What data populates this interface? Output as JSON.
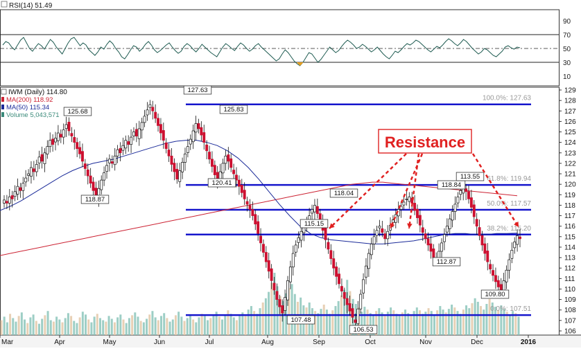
{
  "chart_data": {
    "type": "candlestick",
    "rsi_panel": {
      "label": "RSI(14) 51.49",
      "y_ticks": [
        90,
        70,
        50,
        30,
        10
      ],
      "levels": [
        70,
        50,
        30
      ],
      "values": [
        55,
        60,
        58,
        52,
        48,
        55,
        62,
        66,
        58,
        50,
        46,
        52,
        57,
        54,
        49,
        56,
        63,
        59,
        52,
        47,
        42,
        50,
        58,
        64,
        66,
        60,
        54,
        58,
        55,
        48,
        44,
        40,
        45,
        52,
        49,
        56,
        61,
        57,
        50,
        45,
        38,
        35,
        41,
        48,
        54,
        52,
        46,
        50,
        56,
        60,
        55,
        48,
        44,
        47,
        51,
        55,
        58,
        52,
        47,
        43,
        46,
        53,
        57,
        54,
        49,
        45,
        50,
        56,
        52,
        48,
        44,
        41,
        38,
        45,
        52,
        57,
        54,
        50,
        47,
        53,
        58,
        55,
        50,
        46,
        49,
        54,
        57,
        52,
        48,
        44,
        40,
        36,
        32,
        35,
        42,
        48,
        44,
        38,
        32,
        28,
        25,
        30,
        37,
        44,
        42,
        36,
        30,
        34,
        40,
        46,
        52,
        48,
        44,
        47,
        53,
        58,
        62,
        59,
        55,
        50,
        52,
        56,
        53,
        49,
        45,
        48,
        52,
        47,
        42,
        38,
        35,
        40,
        46,
        44,
        48,
        53,
        57,
        55,
        58,
        62,
        60,
        56,
        52,
        48,
        45,
        49,
        53,
        51,
        55,
        60,
        64,
        61,
        57,
        54,
        58,
        63,
        60,
        55,
        50,
        46,
        42,
        45,
        50,
        48,
        44,
        40,
        38,
        42,
        46,
        52,
        54,
        51,
        49,
        52,
        51
      ]
    },
    "main_panel": {
      "title": "IWM (Daily) 114.80",
      "legend": [
        {
          "label": "MA(200) 118.92",
          "color": "#cc2233"
        },
        {
          "label": "MA(50) 115.34",
          "color": "#1a2a99"
        },
        {
          "label": "Volume 5,043,571",
          "color": "#3a8a7a"
        }
      ],
      "y_min": 106,
      "y_max": 129,
      "y_ticks": [
        106,
        107,
        108,
        109,
        110,
        111,
        112,
        113,
        114,
        115,
        116,
        117,
        118,
        119,
        120,
        121,
        122,
        123,
        124,
        125,
        126,
        127,
        128,
        129
      ],
      "x_labels": [
        "Mar",
        "Apr",
        "May",
        "Jun",
        "Jul",
        "Aug",
        "Sep",
        "Oct",
        "Nov",
        "Dec",
        "2016"
      ],
      "fib_levels": [
        {
          "label": "100.0%: 127.63",
          "value": 127.63
        },
        {
          "label": "61.8%: 119.94",
          "value": 119.94
        },
        {
          "label": "50.0%: 117.57",
          "value": 117.57
        },
        {
          "label": "38.2%: 115.20",
          "value": 115.2
        },
        {
          "label": "0.0%: 107.51",
          "value": 107.51
        }
      ],
      "price_labels": [
        "125.68",
        "118.87",
        "127.63",
        "125.83",
        "120.41",
        "118.04",
        "115.15",
        "107.48",
        "106.53",
        "118.84",
        "113.55",
        "112.87",
        "109.80"
      ],
      "annotation": "Resistance",
      "closes": [
        118.5,
        118.2,
        118.8,
        118.6,
        119.3,
        119.8,
        119.4,
        120.1,
        120.6,
        121.0,
        121.6,
        121.2,
        121.9,
        122.6,
        122.2,
        123.0,
        123.6,
        124.2,
        123.8,
        124.4,
        124.9,
        124.5,
        125.2,
        125.7,
        125.1,
        124.6,
        124.0,
        123.4,
        122.9,
        122.2,
        121.5,
        120.8,
        120.1,
        119.4,
        118.9,
        119.6,
        120.4,
        121.1,
        121.8,
        122.4,
        122.0,
        122.7,
        123.3,
        123.0,
        123.7,
        124.2,
        123.8,
        124.5,
        125.0,
        124.6,
        125.3,
        125.9,
        126.5,
        127.1,
        127.6,
        127.0,
        126.3,
        125.6,
        124.9,
        124.2,
        123.4,
        122.7,
        121.9,
        121.2,
        120.5,
        121.3,
        122.1,
        122.9,
        123.6,
        124.3,
        125.1,
        125.8,
        125.3,
        124.7,
        124.0,
        123.2,
        122.4,
        121.7,
        120.9,
        120.4,
        121.2,
        122.0,
        122.7,
        122.2,
        121.6,
        121.0,
        120.4,
        119.8,
        119.2,
        118.6,
        118.1,
        117.6,
        117.0,
        116.2,
        115.3,
        114.4,
        113.5,
        112.6,
        111.7,
        110.8,
        109.9,
        109.0,
        108.3,
        107.7,
        109.2,
        110.8,
        112.1,
        113.4,
        114.2,
        114.9,
        115.5,
        115.9,
        116.3,
        117.0,
        117.6,
        118.0,
        117.2,
        116.4,
        115.6,
        114.7,
        113.8,
        112.9,
        112.0,
        111.2,
        110.5,
        109.8,
        109.1,
        108.5,
        107.9,
        107.3,
        106.8,
        108.1,
        109.5,
        110.9,
        112.2,
        113.4,
        114.3,
        115.0,
        115.6,
        116.0,
        115.4,
        114.8,
        115.5,
        116.1,
        116.6,
        117.1,
        117.6,
        117.9,
        118.3,
        118.6,
        118.8,
        118.2,
        117.5,
        116.8,
        116.1,
        115.4,
        114.8,
        114.2,
        113.6,
        113.0,
        112.9,
        113.6,
        114.4,
        115.2,
        116.0,
        116.7,
        117.4,
        118.1,
        118.8,
        119.4,
        119.7,
        119.3,
        118.6,
        117.8,
        116.9,
        116.0,
        115.1,
        114.2,
        113.4,
        112.6,
        111.9,
        111.3,
        110.7,
        110.2,
        109.9,
        110.8,
        111.8,
        112.8,
        113.7,
        114.5,
        115.1,
        114.8
      ],
      "ma200": [
        113.2,
        113.4,
        113.6,
        113.8,
        114.0,
        114.2,
        114.4,
        114.6,
        114.8,
        115.0,
        115.2,
        115.4,
        115.6,
        115.8,
        116.0,
        116.2,
        116.4,
        116.6,
        116.8,
        117.0,
        117.2,
        117.4,
        117.6,
        117.8,
        118.0,
        118.2,
        118.4,
        118.6,
        118.8,
        119.0,
        119.2,
        119.4,
        119.6,
        119.8,
        120.0,
        120.1,
        120.2,
        120.2,
        120.1,
        120.0,
        119.9,
        119.8,
        119.7,
        119.6,
        119.5,
        119.4,
        119.3,
        119.2,
        119.1,
        119.0,
        118.9
      ],
      "ma50": [
        117.5,
        117.9,
        118.4,
        119.0,
        119.6,
        120.2,
        120.8,
        121.3,
        121.7,
        122.0,
        122.2,
        122.4,
        122.7,
        123.0,
        123.3,
        123.6,
        123.9,
        124.1,
        124.2,
        124.2,
        124.0,
        123.7,
        123.2,
        122.5,
        121.6,
        120.5,
        119.3,
        118.1,
        117.0,
        116.0,
        115.3,
        114.9,
        114.7,
        114.6,
        114.5,
        114.4,
        114.3,
        114.3,
        114.4,
        114.5,
        114.6,
        114.8,
        115.0,
        115.2,
        115.3,
        115.3,
        115.2,
        115.2,
        115.3,
        115.3,
        115.34
      ],
      "volume": [
        2.1,
        2.6,
        1.8,
        3.0,
        2.4,
        1.9,
        2.7,
        3.2,
        2.2,
        1.7,
        2.5,
        2.9,
        2.0,
        1.6,
        2.3,
        2.8,
        3.4,
        2.1,
        1.9,
        2.6,
        2.2,
        1.8,
        2.4,
        3.1,
        2.7,
        2.0,
        1.7,
        2.5,
        3.3,
        2.9,
        2.2,
        1.8,
        2.6,
        3.0,
        2.4,
        2.1,
        1.9,
        2.7,
        2.3,
        1.8,
        2.5,
        2.9,
        2.2,
        1.7,
        2.4,
        2.8,
        3.2,
        2.6,
        2.0,
        1.8,
        2.3,
        2.9,
        3.4,
        2.5,
        2.1,
        2.7,
        3.1,
        2.4,
        1.9,
        2.2,
        2.8,
        3.3,
        2.6,
        2.0,
        2.4,
        2.9,
        2.2,
        1.8,
        2.5,
        3.0,
        2.7,
        2.1,
        2.4,
        2.9,
        3.3,
        2.6,
        2.2,
        2.8,
        3.5,
        3.0,
        2.5,
        2.1,
        2.7,
        3.2,
        2.9,
        3.6,
        4.1,
        3.4,
        3.0,
        3.8,
        4.6,
        5.2,
        6.1,
        7.4,
        8.8,
        6.9,
        5.5,
        4.8,
        5.9,
        6.6,
        7.2,
        5.8,
        4.7,
        5.3,
        4.2,
        3.9,
        4.6,
        3.8,
        3.4,
        3.1,
        3.7,
        4.3,
        3.6,
        3.0,
        3.5,
        4.1,
        4.8,
        5.6,
        6.4,
        7.8,
        6.2,
        5.1,
        4.4,
        3.9,
        3.3,
        4.0,
        3.6,
        3.1,
        2.9,
        3.4,
        3.8,
        3.2,
        2.8,
        3.3,
        3.9,
        3.5,
        3.0,
        2.7,
        3.2,
        3.6,
        3.1,
        2.8,
        3.4,
        3.9,
        3.5,
        3.0,
        3.3,
        3.8,
        3.4,
        2.9,
        3.5,
        4.1,
        3.6,
        3.2,
        3.7,
        4.3,
        3.9,
        3.4,
        3.0,
        3.6,
        4.2,
        3.8,
        4.5,
        5.2,
        4.7,
        4.1,
        3.6,
        4.4,
        5.1,
        4.6,
        4.0,
        3.5,
        4.2,
        3.7,
        3.3,
        2.8,
        3.4,
        3.1,
        2.6
      ]
    }
  }
}
